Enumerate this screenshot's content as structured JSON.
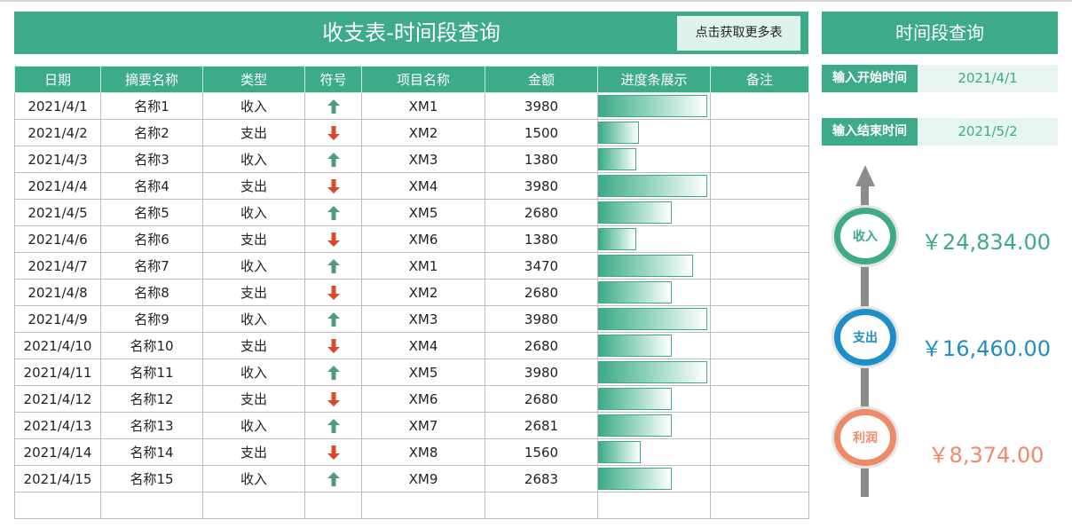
{
  "page": {
    "title": "收支表-时间段查询",
    "more_button": "点击获取更多表"
  },
  "table": {
    "headers": [
      "日期",
      "摘要名称",
      "类型",
      "符号",
      "项目名称",
      "金额",
      "进度条展示",
      "备注"
    ],
    "max_amount": 3980,
    "rows": [
      {
        "date": "2021/4/1",
        "name": "名称1",
        "type": "收入",
        "direction": "up",
        "project": "XM1",
        "amount": 3980,
        "note": ""
      },
      {
        "date": "2021/4/2",
        "name": "名称2",
        "type": "支出",
        "direction": "down",
        "project": "XM2",
        "amount": 1500,
        "note": ""
      },
      {
        "date": "2021/4/3",
        "name": "名称3",
        "type": "收入",
        "direction": "up",
        "project": "XM3",
        "amount": 1380,
        "note": ""
      },
      {
        "date": "2021/4/4",
        "name": "名称4",
        "type": "支出",
        "direction": "down",
        "project": "XM4",
        "amount": 3980,
        "note": ""
      },
      {
        "date": "2021/4/5",
        "name": "名称5",
        "type": "收入",
        "direction": "up",
        "project": "XM5",
        "amount": 2680,
        "note": ""
      },
      {
        "date": "2021/4/6",
        "name": "名称6",
        "type": "支出",
        "direction": "down",
        "project": "XM6",
        "amount": 1380,
        "note": ""
      },
      {
        "date": "2021/4/7",
        "name": "名称7",
        "type": "收入",
        "direction": "up",
        "project": "XM1",
        "amount": 3470,
        "note": ""
      },
      {
        "date": "2021/4/8",
        "name": "名称8",
        "type": "支出",
        "direction": "down",
        "project": "XM2",
        "amount": 2680,
        "note": ""
      },
      {
        "date": "2021/4/9",
        "name": "名称9",
        "type": "收入",
        "direction": "up",
        "project": "XM3",
        "amount": 3980,
        "note": ""
      },
      {
        "date": "2021/4/10",
        "name": "名称10",
        "type": "支出",
        "direction": "down",
        "project": "XM4",
        "amount": 2680,
        "note": ""
      },
      {
        "date": "2021/4/11",
        "name": "名称11",
        "type": "收入",
        "direction": "up",
        "project": "XM5",
        "amount": 3980,
        "note": ""
      },
      {
        "date": "2021/4/12",
        "name": "名称12",
        "type": "支出",
        "direction": "down",
        "project": "XM6",
        "amount": 2680,
        "note": ""
      },
      {
        "date": "2021/4/13",
        "name": "名称13",
        "type": "收入",
        "direction": "up",
        "project": "XM7",
        "amount": 2681,
        "note": ""
      },
      {
        "date": "2021/4/14",
        "name": "名称14",
        "type": "支出",
        "direction": "down",
        "project": "XM8",
        "amount": 1560,
        "note": ""
      },
      {
        "date": "2021/4/15",
        "name": "名称15",
        "type": "收入",
        "direction": "up",
        "project": "XM9",
        "amount": 2683,
        "note": ""
      },
      {
        "date": "",
        "name": "",
        "type": "",
        "direction": "",
        "project": "",
        "amount": "",
        "note": ""
      }
    ]
  },
  "side": {
    "title": "时间段查询",
    "start_label": "输入开始时间",
    "start_value": "2021/4/1",
    "end_label": "输入结束时间",
    "end_value": "2021/5/2",
    "summary": [
      {
        "label": "收入",
        "amount": "￥24,834.00",
        "color": "#3daa89"
      },
      {
        "label": "支出",
        "amount": "￥16,460.00",
        "color": "#1e8fc6"
      },
      {
        "label": "利润",
        "amount": "￥8,374.00",
        "color": "#ef8a68"
      }
    ]
  },
  "colors": {
    "accent": "#3daa89",
    "arrow_up": "#4f9a80",
    "arrow_down": "#d9482b"
  }
}
